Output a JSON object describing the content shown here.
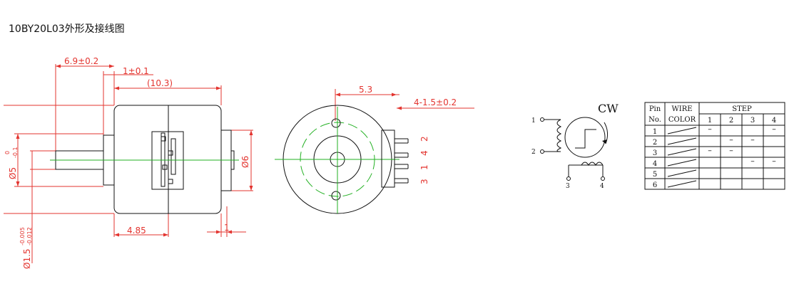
{
  "title": "10BY20L03外形及接线图",
  "side_view": {
    "dim_width_a": "6.9±0.2",
    "dim_gap": "1±0.1",
    "dim_body_length": "(10.3)",
    "dim_shaft_dia": "Ø5",
    "dim_shaft_tol_upper": "0",
    "dim_shaft_tol_lower": "-0.1",
    "dim_boss_dia": "Ø6",
    "dim_offset": "4.85",
    "dim_shaft_end": "1",
    "dim_pin_dia": "Ø1.5",
    "dim_pin_tol_upper": "-0.005",
    "dim_pin_tol_lower": "-0.012"
  },
  "front_view": {
    "dim_hole_spacing": "5.3",
    "dim_holes": "4-1.5±0.2",
    "pin_labels": [
      "2",
      "4",
      "1",
      "3"
    ]
  },
  "winding": {
    "direction": "CW",
    "terminals": [
      "1",
      "2",
      "3",
      "4"
    ]
  },
  "step_table": {
    "col_pin": [
      "Pin",
      "No."
    ],
    "col_wire": [
      "WIRE",
      "COLOR"
    ],
    "step_header": "STEP",
    "step_cols": [
      "1",
      "2",
      "3",
      "4"
    ],
    "rows": [
      {
        "pin": "1",
        "steps": [
          "–",
          "",
          "",
          "–"
        ]
      },
      {
        "pin": "2",
        "steps": [
          "",
          "–",
          "–",
          ""
        ]
      },
      {
        "pin": "3",
        "steps": [
          "–",
          "–",
          "",
          ""
        ]
      },
      {
        "pin": "4",
        "steps": [
          "",
          "",
          "–",
          "–"
        ]
      },
      {
        "pin": "5",
        "steps": [
          "",
          "",
          "",
          ""
        ]
      },
      {
        "pin": "6",
        "steps": [
          "",
          "",
          "",
          ""
        ]
      }
    ]
  },
  "colors": {
    "dimension": "#e3342f",
    "centerline": "#22b022",
    "outline": "#111111"
  }
}
